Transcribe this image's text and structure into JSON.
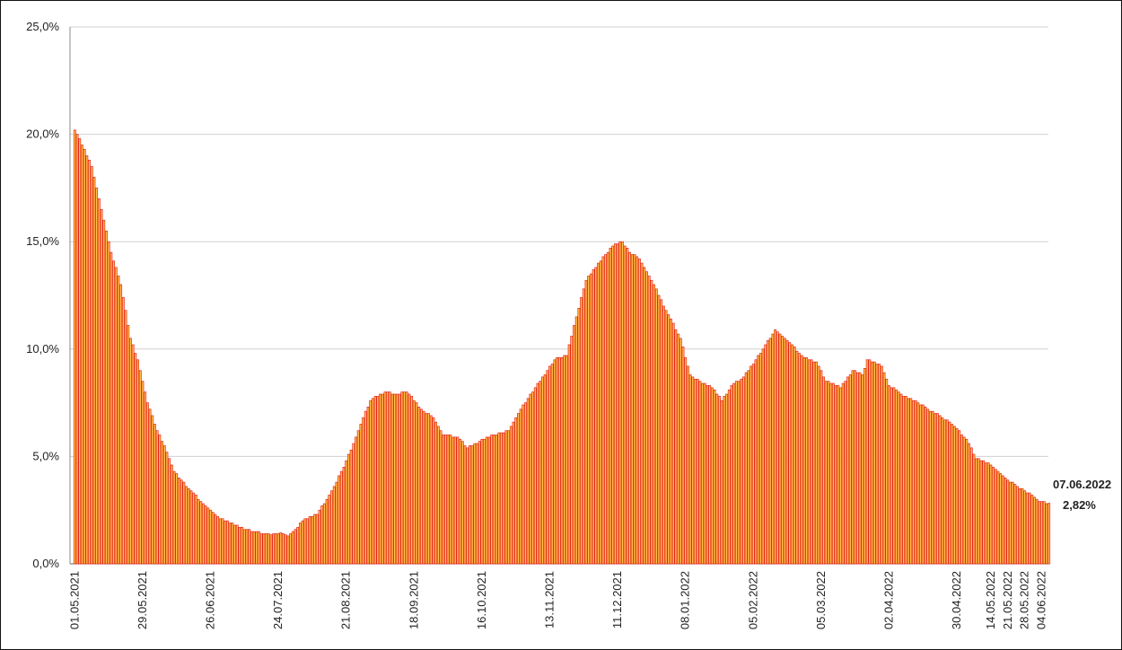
{
  "chart_data": {
    "type": "bar",
    "color": "#ffc44a",
    "edge_color": "#e3241c",
    "grid": true,
    "ylim": [
      0,
      25
    ],
    "yticks": [
      {
        "value": 0,
        "label": "0,0%"
      },
      {
        "value": 5,
        "label": "5,0%"
      },
      {
        "value": 10,
        "label": "10,0%"
      },
      {
        "value": 15,
        "label": "15,0%"
      },
      {
        "value": 20,
        "label": "20,0%"
      },
      {
        "value": 25,
        "label": "25,0%"
      }
    ],
    "annotation": {
      "category": "07.06.2022",
      "label": "2,82%"
    },
    "categories": [
      "01.05.2021",
      null,
      null,
      null,
      null,
      null,
      null,
      null,
      null,
      null,
      null,
      null,
      null,
      null,
      null,
      null,
      null,
      null,
      null,
      null,
      null,
      null,
      null,
      null,
      null,
      null,
      null,
      null,
      "29.05.2021",
      null,
      null,
      null,
      null,
      null,
      null,
      null,
      null,
      null,
      null,
      null,
      null,
      null,
      null,
      null,
      null,
      null,
      null,
      null,
      null,
      null,
      null,
      null,
      null,
      null,
      null,
      null,
      "26.06.2021",
      null,
      null,
      null,
      null,
      null,
      null,
      null,
      null,
      null,
      null,
      null,
      null,
      null,
      null,
      null,
      null,
      null,
      null,
      null,
      null,
      null,
      null,
      null,
      null,
      null,
      null,
      null,
      "24.07.2021",
      null,
      null,
      null,
      null,
      null,
      null,
      null,
      null,
      null,
      null,
      null,
      null,
      null,
      null,
      null,
      null,
      null,
      null,
      null,
      null,
      null,
      null,
      null,
      null,
      null,
      null,
      null,
      "21.08.2021",
      null,
      null,
      null,
      null,
      null,
      null,
      null,
      null,
      null,
      null,
      null,
      null,
      null,
      null,
      null,
      null,
      null,
      null,
      null,
      null,
      null,
      null,
      null,
      null,
      null,
      null,
      null,
      "18.09.2021",
      null,
      null,
      null,
      null,
      null,
      null,
      null,
      null,
      null,
      null,
      null,
      null,
      null,
      null,
      null,
      null,
      null,
      null,
      null,
      null,
      null,
      null,
      null,
      null,
      null,
      null,
      null,
      "16.10.2021",
      null,
      null,
      null,
      null,
      null,
      null,
      null,
      null,
      null,
      null,
      null,
      null,
      null,
      null,
      null,
      null,
      null,
      null,
      null,
      null,
      null,
      null,
      null,
      null,
      null,
      null,
      null,
      "13.11.2021",
      null,
      null,
      null,
      null,
      null,
      null,
      null,
      null,
      null,
      null,
      null,
      null,
      null,
      null,
      null,
      null,
      null,
      null,
      null,
      null,
      null,
      null,
      null,
      null,
      null,
      null,
      null,
      "11.12.2021",
      null,
      null,
      null,
      null,
      null,
      null,
      null,
      null,
      null,
      null,
      null,
      null,
      null,
      null,
      null,
      null,
      null,
      null,
      null,
      null,
      null,
      null,
      null,
      null,
      null,
      null,
      null,
      "08.01.2022",
      null,
      null,
      null,
      null,
      null,
      null,
      null,
      null,
      null,
      null,
      null,
      null,
      null,
      null,
      null,
      null,
      null,
      null,
      null,
      null,
      null,
      null,
      null,
      null,
      null,
      null,
      null,
      "05.02.2022",
      null,
      null,
      null,
      null,
      null,
      null,
      null,
      null,
      null,
      null,
      null,
      null,
      null,
      null,
      null,
      null,
      null,
      null,
      null,
      null,
      null,
      null,
      null,
      null,
      null,
      null,
      null,
      "05.03.2022",
      null,
      null,
      null,
      null,
      null,
      null,
      null,
      null,
      null,
      null,
      null,
      null,
      null,
      null,
      null,
      null,
      null,
      null,
      null,
      null,
      null,
      null,
      null,
      null,
      null,
      null,
      null,
      "02.04.2022",
      null,
      null,
      null,
      null,
      null,
      null,
      null,
      null,
      null,
      null,
      null,
      null,
      null,
      null,
      null,
      null,
      null,
      null,
      null,
      null,
      null,
      null,
      null,
      null,
      null,
      null,
      null,
      "30.04.2022",
      null,
      null,
      null,
      null,
      null,
      null,
      null,
      null,
      null,
      null,
      null,
      null,
      null,
      "14.05.2022",
      null,
      null,
      null,
      null,
      null,
      null,
      "21.05.2022",
      null,
      null,
      null,
      null,
      null,
      null,
      "28.05.2022",
      null,
      null,
      null,
      null,
      null,
      null,
      "04.06.2022",
      null,
      null,
      null
    ],
    "values": [
      20.2,
      20.0,
      19.8,
      19.5,
      19.3,
      19.0,
      18.8,
      18.5,
      18.0,
      17.5,
      17.0,
      16.5,
      16.0,
      15.5,
      15.0,
      14.5,
      14.1,
      13.8,
      13.4,
      13.0,
      12.4,
      11.8,
      11.1,
      10.5,
      10.2,
      9.8,
      9.5,
      9.0,
      8.5,
      8.0,
      7.5,
      7.2,
      6.9,
      6.5,
      6.2,
      6.0,
      5.7,
      5.5,
      5.2,
      4.9,
      4.6,
      4.3,
      4.2,
      4.0,
      3.9,
      3.8,
      3.6,
      3.5,
      3.4,
      3.3,
      3.2,
      3.0,
      2.9,
      2.8,
      2.7,
      2.6,
      2.5,
      2.4,
      2.3,
      2.2,
      2.1,
      2.1,
      2.0,
      2.0,
      1.9,
      1.9,
      1.8,
      1.8,
      1.7,
      1.7,
      1.6,
      1.6,
      1.6,
      1.5,
      1.5,
      1.5,
      1.5,
      1.4,
      1.4,
      1.4,
      1.4,
      1.35,
      1.4,
      1.4,
      1.4,
      1.45,
      1.4,
      1.35,
      1.3,
      1.4,
      1.5,
      1.6,
      1.7,
      1.9,
      2.0,
      2.1,
      2.1,
      2.2,
      2.2,
      2.3,
      2.3,
      2.5,
      2.7,
      2.8,
      3.0,
      3.2,
      3.4,
      3.6,
      3.8,
      4.1,
      4.3,
      4.5,
      4.8,
      5.1,
      5.3,
      5.6,
      5.9,
      6.2,
      6.5,
      6.8,
      7.1,
      7.3,
      7.6,
      7.7,
      7.8,
      7.8,
      7.9,
      7.9,
      8.0,
      8.0,
      8.0,
      7.9,
      7.9,
      7.9,
      7.9,
      8.0,
      8.0,
      8.0,
      7.9,
      7.8,
      7.6,
      7.5,
      7.3,
      7.2,
      7.1,
      7.0,
      7.0,
      6.9,
      6.8,
      6.6,
      6.4,
      6.2,
      6.0,
      6.0,
      6.0,
      6.0,
      5.9,
      5.9,
      5.9,
      5.8,
      5.7,
      5.5,
      5.4,
      5.5,
      5.5,
      5.6,
      5.6,
      5.7,
      5.8,
      5.8,
      5.9,
      5.9,
      6.0,
      6.0,
      6.0,
      6.1,
      6.1,
      6.1,
      6.2,
      6.2,
      6.4,
      6.6,
      6.8,
      7.0,
      7.2,
      7.4,
      7.5,
      7.7,
      7.9,
      8.0,
      8.2,
      8.4,
      8.5,
      8.7,
      8.8,
      9.0,
      9.2,
      9.3,
      9.5,
      9.6,
      9.6,
      9.6,
      9.7,
      9.7,
      10.2,
      10.6,
      11.1,
      11.5,
      11.9,
      12.4,
      12.8,
      13.2,
      13.4,
      13.5,
      13.7,
      13.8,
      14.0,
      14.1,
      14.3,
      14.4,
      14.5,
      14.7,
      14.8,
      14.9,
      14.9,
      15.0,
      15.0,
      14.8,
      14.7,
      14.5,
      14.4,
      14.4,
      14.3,
      14.2,
      14.0,
      13.8,
      13.6,
      13.4,
      13.2,
      13.0,
      12.8,
      12.5,
      12.3,
      12.0,
      11.8,
      11.6,
      11.4,
      11.2,
      10.9,
      10.7,
      10.5,
      10.1,
      9.6,
      9.2,
      8.8,
      8.7,
      8.6,
      8.6,
      8.5,
      8.4,
      8.4,
      8.3,
      8.3,
      8.2,
      8.1,
      7.9,
      7.8,
      7.6,
      7.8,
      7.9,
      8.1,
      8.3,
      8.4,
      8.5,
      8.5,
      8.6,
      8.7,
      8.9,
      9.0,
      9.2,
      9.3,
      9.5,
      9.7,
      9.8,
      10.0,
      10.2,
      10.4,
      10.5,
      10.7,
      10.9,
      10.8,
      10.7,
      10.6,
      10.5,
      10.4,
      10.3,
      10.2,
      10.1,
      9.9,
      9.8,
      9.7,
      9.6,
      9.6,
      9.5,
      9.5,
      9.4,
      9.4,
      9.2,
      9.0,
      8.7,
      8.5,
      8.5,
      8.4,
      8.4,
      8.3,
      8.3,
      8.2,
      8.4,
      8.5,
      8.7,
      8.8,
      9.0,
      9.0,
      8.9,
      8.9,
      8.8,
      9.1,
      9.5,
      9.5,
      9.4,
      9.4,
      9.3,
      9.3,
      9.2,
      8.9,
      8.6,
      8.3,
      8.2,
      8.2,
      8.1,
      8.0,
      7.9,
      7.8,
      7.8,
      7.7,
      7.7,
      7.6,
      7.6,
      7.5,
      7.4,
      7.4,
      7.3,
      7.2,
      7.1,
      7.1,
      7.0,
      7.0,
      6.9,
      6.8,
      6.7,
      6.7,
      6.6,
      6.5,
      6.4,
      6.3,
      6.2,
      6.0,
      5.9,
      5.8,
      5.6,
      5.4,
      5.1,
      4.9,
      4.9,
      4.8,
      4.8,
      4.7,
      4.7,
      4.6,
      4.5,
      4.4,
      4.3,
      4.2,
      4.1,
      4.0,
      3.9,
      3.8,
      3.8,
      3.7,
      3.6,
      3.5,
      3.5,
      3.4,
      3.3,
      3.3,
      3.2,
      3.1,
      3.0,
      2.9,
      2.9,
      2.9,
      2.8,
      2.82
    ]
  }
}
